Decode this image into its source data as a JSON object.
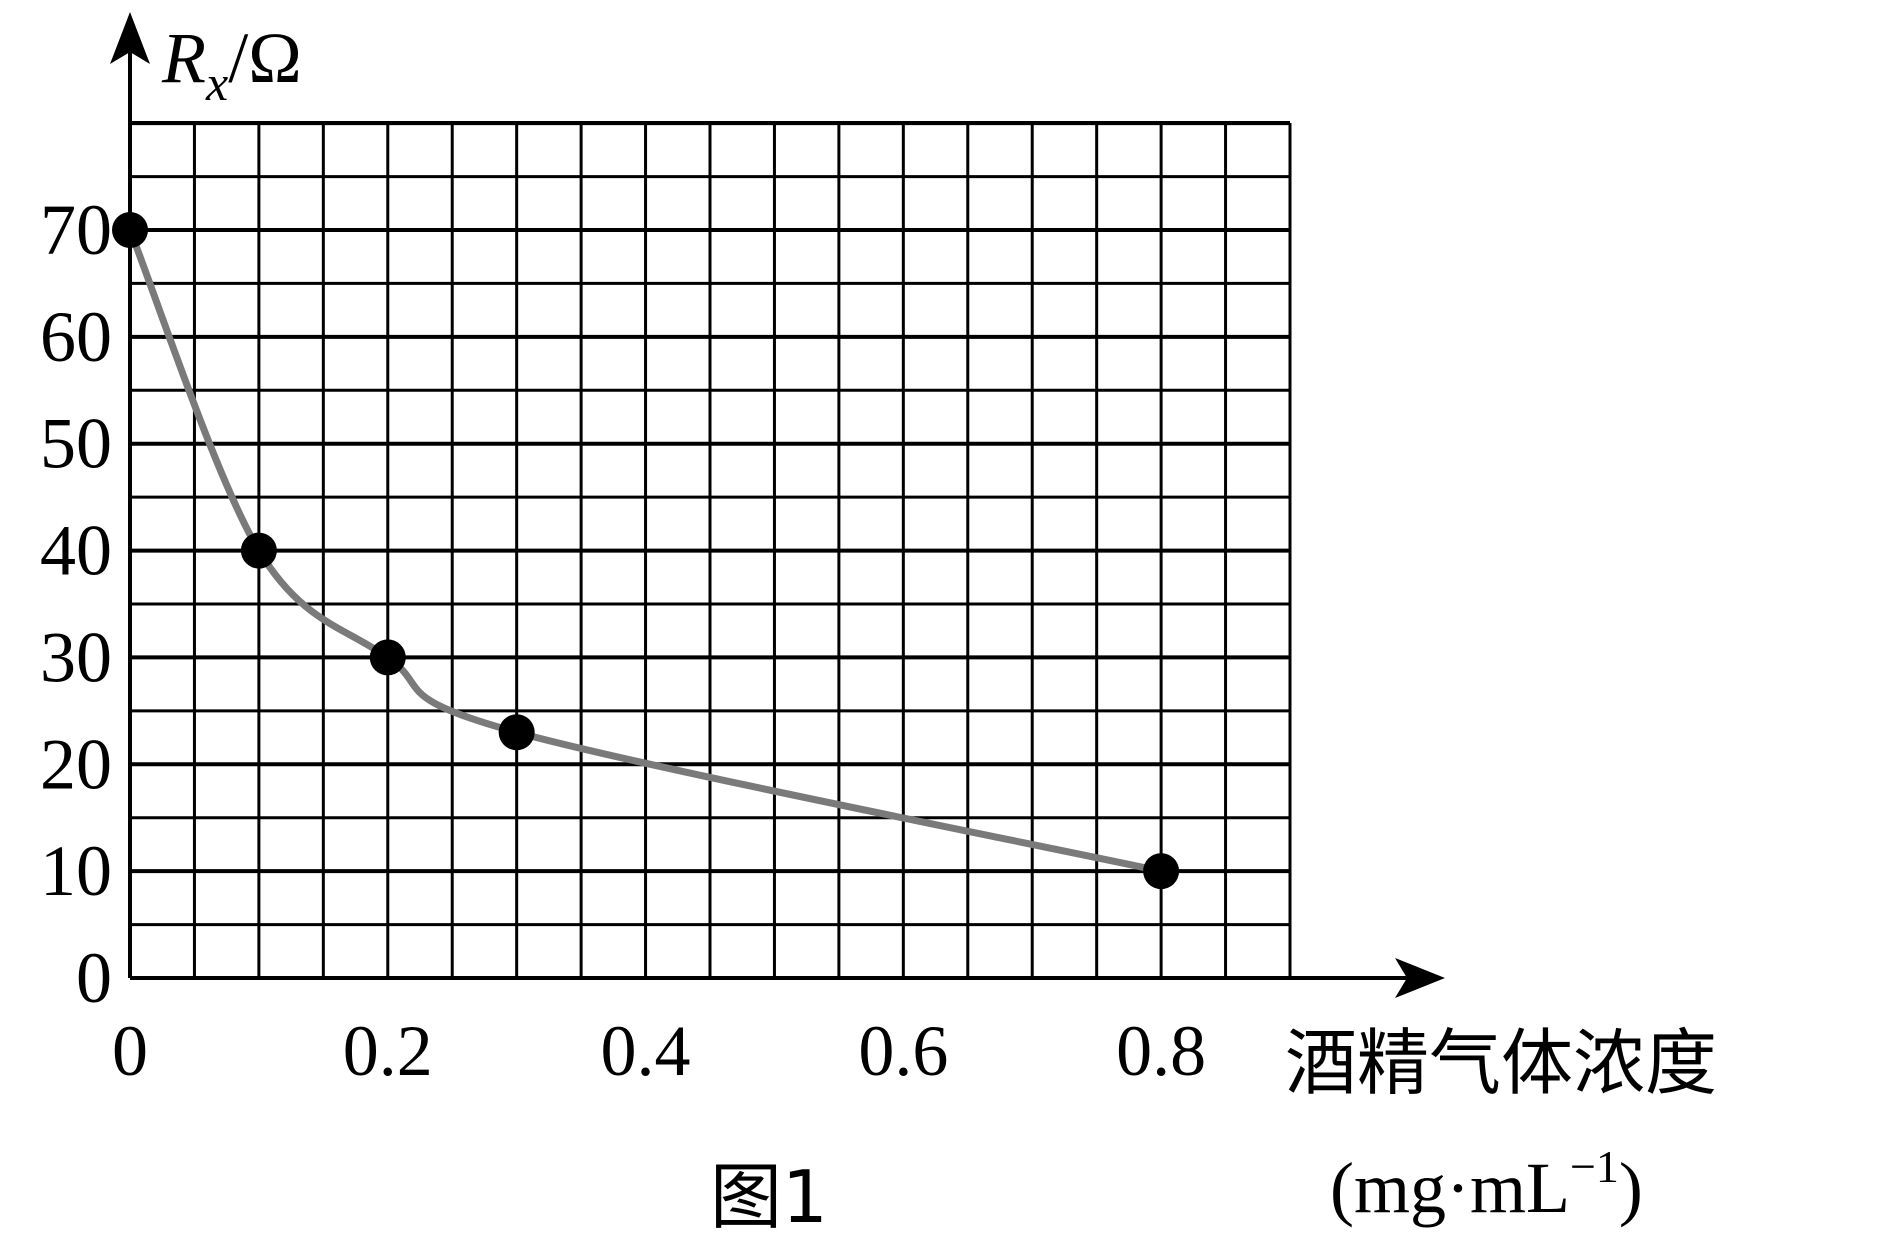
{
  "chart_data": {
    "type": "line",
    "title": "",
    "caption": "图1",
    "ylabel": {
      "symbol": "R",
      "subscript": "x",
      "unit": "/Ω"
    },
    "xlabel": {
      "line1": "酒精气体浓度",
      "line2_prefix": "(mg·mL",
      "line2_sup": "−1",
      "line2_suffix": ")"
    },
    "xlim": [
      0,
      0.9
    ],
    "ylim": [
      0,
      70
    ],
    "x_ticks": [
      "0",
      "0.2",
      "0.4",
      "0.6",
      "0.8"
    ],
    "x_tick_values": [
      0,
      0.2,
      0.4,
      0.6,
      0.8
    ],
    "y_ticks": [
      "0",
      "10",
      "20",
      "30",
      "40",
      "50",
      "60",
      "70"
    ],
    "y_tick_values": [
      0,
      10,
      20,
      30,
      40,
      50,
      60,
      70
    ],
    "minor_x_step": 0.05,
    "minor_y_step": 5,
    "grid": true,
    "series": [
      {
        "points": [
          {
            "x": 0,
            "y": 70
          },
          {
            "x": 0.1,
            "y": 40
          },
          {
            "x": 0.2,
            "y": 30
          },
          {
            "x": 0.3,
            "y": 23
          },
          {
            "x": 0.8,
            "y": 10
          }
        ]
      }
    ],
    "curve_color": "#7a7a7a",
    "point_color": "#000000",
    "grid_color": "#000000"
  }
}
